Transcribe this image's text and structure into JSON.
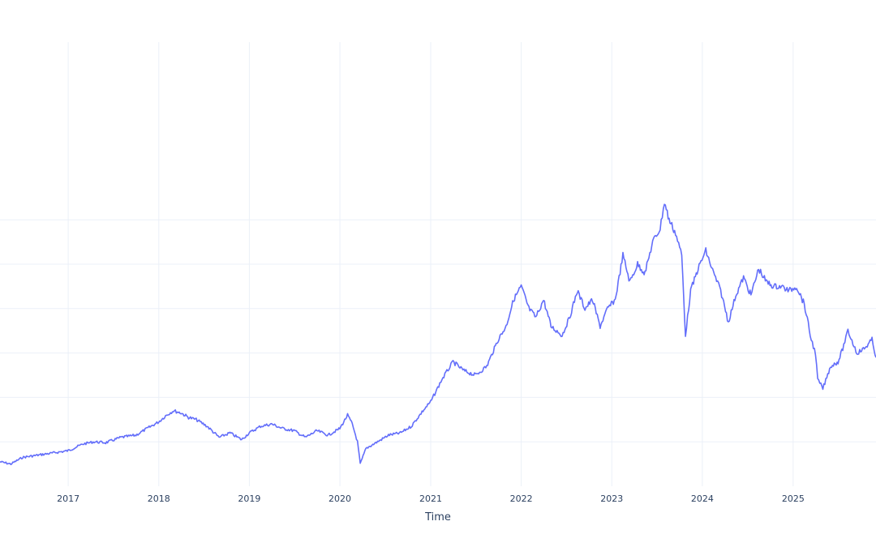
{
  "colors": {
    "line": "#636efa",
    "grid": "#ebf0f8",
    "text": "#2a3f5f",
    "background": "#ffffff"
  },
  "chart_data": {
    "type": "line",
    "title": "",
    "xlabel": "Time",
    "ylabel": "",
    "grid": true,
    "legend": "none",
    "x_tick_labels": [
      "2017",
      "2018",
      "2019",
      "2020",
      "2021",
      "2022",
      "2023",
      "2024",
      "2025"
    ],
    "y_tick_labels_visible": false,
    "xlim": [
      "2016-04-01",
      "2025-12-01"
    ],
    "ylim": [
      0,
      100
    ],
    "y_gridlines": [
      10,
      20,
      30,
      40,
      50,
      60
    ],
    "series": [
      {
        "name": "",
        "x": [
          "2016-04-01",
          "2016-05-15",
          "2016-07-01",
          "2016-09-01",
          "2016-11-01",
          "2017-01-01",
          "2017-03-01",
          "2017-04-15",
          "2017-06-01",
          "2017-08-01",
          "2017-10-01",
          "2017-11-15",
          "2018-01-01",
          "2018-02-01",
          "2018-03-01",
          "2018-04-01",
          "2018-05-01",
          "2018-06-01",
          "2018-07-15",
          "2018-09-01",
          "2018-10-15",
          "2018-12-01",
          "2019-01-01",
          "2019-02-15",
          "2019-04-01",
          "2019-05-15",
          "2019-07-01",
          "2019-08-15",
          "2019-10-01",
          "2019-11-15",
          "2020-01-01",
          "2020-02-01",
          "2020-02-20",
          "2020-03-12",
          "2020-03-23",
          "2020-04-15",
          "2020-06-01",
          "2020-07-15",
          "2020-09-01",
          "2020-10-15",
          "2020-12-01",
          "2021-01-01",
          "2021-02-15",
          "2021-04-01",
          "2021-05-15",
          "2021-07-01",
          "2021-08-15",
          "2021-09-30",
          "2021-11-01",
          "2021-12-01",
          "2022-01-01",
          "2022-02-01",
          "2022-03-01",
          "2022-04-01",
          "2022-05-01",
          "2022-06-15",
          "2022-07-15",
          "2022-08-15",
          "2022-09-15",
          "2022-10-15",
          "2022-11-15",
          "2022-12-15",
          "2023-01-15",
          "2023-02-15",
          "2023-03-15",
          "2023-04-15",
          "2023-05-15",
          "2023-06-15",
          "2023-07-15",
          "2023-08-01",
          "2023-08-20",
          "2023-09-15",
          "2023-10-10",
          "2023-10-25",
          "2023-11-15",
          "2023-12-15",
          "2024-01-15",
          "2024-02-15",
          "2024-03-15",
          "2024-04-15",
          "2024-05-15",
          "2024-06-15",
          "2024-07-15",
          "2024-08-15",
          "2024-09-15",
          "2024-10-15",
          "2024-11-15",
          "2024-12-15",
          "2025-01-15",
          "2025-02-15",
          "2025-03-15",
          "2025-04-01",
          "2025-04-10",
          "2025-05-01",
          "2025-06-01",
          "2025-07-01",
          "2025-07-20",
          "2025-08-10",
          "2025-09-15",
          "2025-10-15",
          "2025-11-15",
          "2025-12-01"
        ],
        "y": [
          5.5,
          5.0,
          6.5,
          7.0,
          7.5,
          8.0,
          9.5,
          10.0,
          9.8,
          11.0,
          11.5,
          13.0,
          14.5,
          16.0,
          17.0,
          16.5,
          15.5,
          15.0,
          13.5,
          11.0,
          12.0,
          10.5,
          12.0,
          13.5,
          14.0,
          13.0,
          12.5,
          11.0,
          12.5,
          11.5,
          13.0,
          16.0,
          14.0,
          10.0,
          5.0,
          8.5,
          10.0,
          11.5,
          12.0,
          13.5,
          17.0,
          19.0,
          24.0,
          28.0,
          26.0,
          25.0,
          27.0,
          33.0,
          36.0,
          42.0,
          45.0,
          40.0,
          38.0,
          42.0,
          36.0,
          34.0,
          38.0,
          44.0,
          40.0,
          42.0,
          36.0,
          40.0,
          42.0,
          52.0,
          46.0,
          50.0,
          48.0,
          55.0,
          58.0,
          64.0,
          60.0,
          57.0,
          52.0,
          34.0,
          44.0,
          49.0,
          53.0,
          48.0,
          44.0,
          37.0,
          43.0,
          47.0,
          43.0,
          49.0,
          46.0,
          45.0,
          45.0,
          44.0,
          45.0,
          41.0,
          33.0,
          30.0,
          24.0,
          22.0,
          27.0,
          28.0,
          31.0,
          35.0,
          30.0,
          31.0,
          33.0,
          29.0
        ]
      }
    ]
  }
}
